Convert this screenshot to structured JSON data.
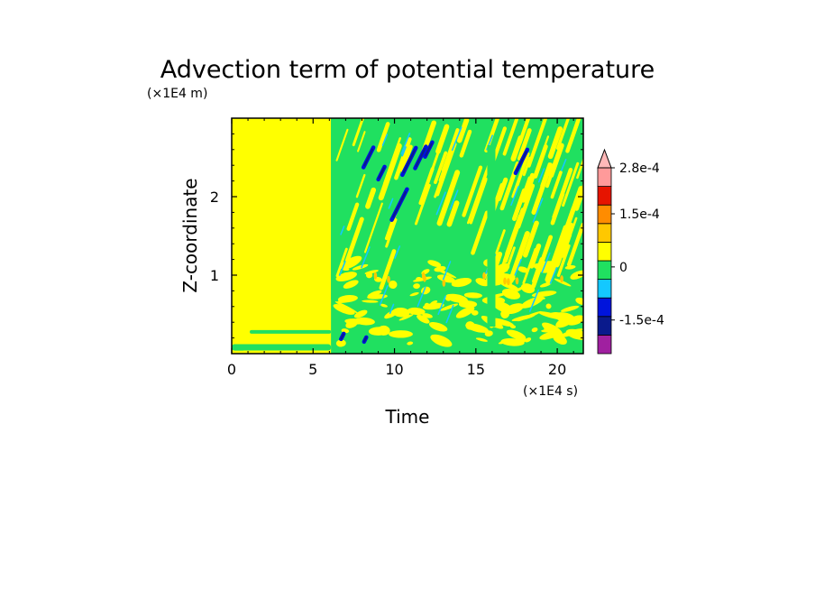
{
  "chart_data": {
    "type": "heatmap",
    "title": "Advection term of potential temperature",
    "xlabel": "Time",
    "ylabel": "Z-coordinate",
    "x_unit": "(×1E4 s)",
    "y_unit": "(×1E4 m)",
    "xlim": [
      0,
      21.6
    ],
    "ylim": [
      0,
      3.0
    ],
    "x_ticks": [
      0,
      5,
      10,
      15,
      20
    ],
    "x_tick_labels": [
      "0",
      "5",
      "10",
      "15",
      "20"
    ],
    "y_ticks": [
      1,
      2
    ],
    "y_tick_labels": [
      "1",
      "2"
    ],
    "colorbar": {
      "levels": [
        -0.000245,
        -0.00021,
        -0.000175,
        -0.00014,
        -0.000105,
        -7e-05,
        -3.5e-05,
        0,
        3.5e-05,
        7e-05,
        0.000105,
        0.00014,
        0.000175,
        0.00021,
        0.000245,
        0.00028
      ],
      "colors": [
        "#a020a0",
        "#0a1a8c",
        "#0014dc",
        "#14c8ff",
        "#20e060",
        "#ffff00",
        "#ffc800",
        "#ff8c00",
        "#e61400",
        "#ff9a9a",
        "#ffb8b8"
      ],
      "labels": [
        "2.8e-4",
        "1.5e-4",
        "0",
        "-1.5e-4"
      ],
      "label_values": [
        0.00028,
        0.00015,
        0,
        -0.00015
      ]
    },
    "regions": [
      {
        "x": [
          0,
          6.1
        ],
        "z": [
          0.1,
          3.0
        ],
        "value": 0,
        "note": "uniform near-zero before ~6e4 s"
      },
      {
        "x": [
          6.1,
          21.6
        ],
        "z": [
          0,
          3.0
        ],
        "value": "alternating slanted bands of small positive/negative values"
      },
      {
        "x": [
          10,
          13
        ],
        "z": [
          1.6,
          2.6
        ],
        "value": -0.000175,
        "note": "strong negative slanted streaks"
      },
      {
        "x": [
          17.5,
          18.5
        ],
        "z": [
          2.2,
          2.6
        ],
        "value": -0.00014
      }
    ]
  }
}
